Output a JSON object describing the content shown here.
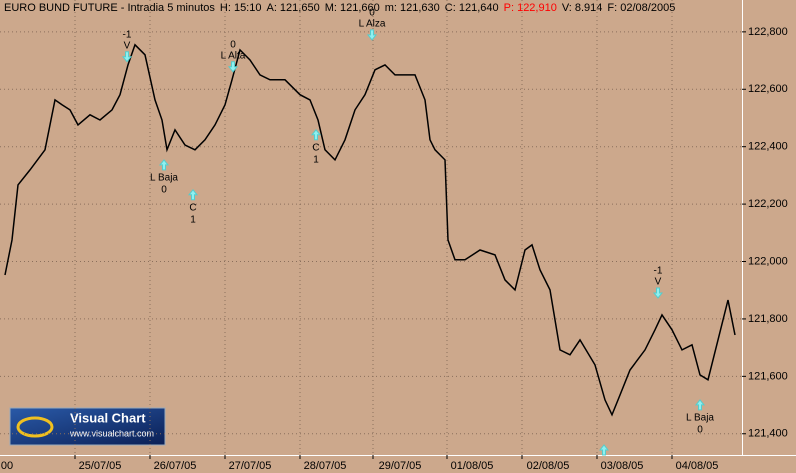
{
  "chart_data": {
    "type": "line",
    "header": [
      {
        "text": "EURO BUND FUTURE - Intradia 5 minutos",
        "color": "#000000"
      },
      {
        "text": "H: 15:10",
        "color": "#000000"
      },
      {
        "text": "A: 121,650",
        "color": "#000000"
      },
      {
        "text": "M: 121,660",
        "color": "#000000"
      },
      {
        "text": "m: 121,630",
        "color": "#000000"
      },
      {
        "text": "C: 121,640",
        "color": "#000000"
      },
      {
        "text": "P: 122,910",
        "color": "#ff0000"
      },
      {
        "text": "V: 8.914",
        "color": "#000000"
      },
      {
        "text": "F: 02/08/2005",
        "color": "#000000"
      }
    ],
    "logo": {
      "title": "Visual Chart",
      "url": "www.visualchart.com"
    },
    "xlim": [
      0,
      742
    ],
    "ylim": [
      121.326,
      122.911
    ],
    "xticks": [
      {
        "value": 7,
        "label": "00"
      },
      {
        "value": 100,
        "label": "25/07/05"
      },
      {
        "value": 175,
        "label": "26/07/05"
      },
      {
        "value": 250,
        "label": "27/07/05"
      },
      {
        "value": 325,
        "label": "28/07/05"
      },
      {
        "value": 400,
        "label": "29/07/05"
      },
      {
        "value": 472,
        "label": "01/08/05"
      },
      {
        "value": 548,
        "label": "02/08/05"
      },
      {
        "value": 622,
        "label": "03/08/05"
      },
      {
        "value": 697,
        "label": "04/08/05"
      }
    ],
    "xgrid": [
      75,
      150,
      225,
      300,
      373,
      447,
      522,
      597,
      672
    ],
    "yticks": [
      {
        "value": 121.4,
        "label": "121,400"
      },
      {
        "value": 121.6,
        "label": "121,600"
      },
      {
        "value": 121.8,
        "label": "121,800"
      },
      {
        "value": 122.0,
        "label": "122,000"
      },
      {
        "value": 122.2,
        "label": "122,200"
      },
      {
        "value": 122.4,
        "label": "122,400"
      },
      {
        "value": 122.6,
        "label": "122,600"
      },
      {
        "value": 122.8,
        "label": "122,800"
      }
    ],
    "grid": true,
    "series": [
      {
        "name": "EURO BUND FUTURE",
        "color": "#000000",
        "x": [
          5,
          12,
          18,
          30,
          45,
          55,
          62,
          70,
          78,
          90,
          100,
          112,
          120,
          128,
          135,
          145,
          155,
          162,
          167,
          175,
          185,
          195,
          205,
          215,
          225,
          232,
          240,
          250,
          260,
          270,
          285,
          300,
          310,
          318,
          325,
          335,
          345,
          355,
          365,
          375,
          385,
          395,
          405,
          415,
          425,
          430,
          435,
          445,
          448,
          455,
          465,
          480,
          495,
          505,
          515,
          525,
          532,
          540,
          550,
          560,
          570,
          580,
          595,
          605,
          612,
          620,
          630,
          645,
          655,
          662,
          672,
          682,
          692,
          700,
          708,
          718,
          728,
          735
        ],
        "values": [
          121.953,
          122.075,
          122.267,
          122.319,
          122.389,
          122.563,
          122.546,
          122.528,
          122.476,
          122.511,
          122.493,
          122.528,
          122.581,
          122.685,
          122.755,
          122.72,
          122.563,
          122.493,
          122.389,
          122.459,
          122.406,
          122.389,
          122.424,
          122.476,
          122.546,
          122.633,
          122.737,
          122.702,
          122.65,
          122.633,
          122.633,
          122.581,
          122.563,
          122.493,
          122.389,
          122.354,
          122.424,
          122.528,
          122.581,
          122.668,
          122.685,
          122.65,
          122.65,
          122.65,
          122.563,
          122.424,
          122.389,
          122.354,
          122.075,
          122.006,
          122.006,
          122.04,
          122.023,
          121.936,
          121.901,
          122.04,
          122.058,
          121.971,
          121.901,
          121.692,
          121.675,
          121.727,
          121.64,
          121.518,
          121.466,
          121.535,
          121.622,
          121.692,
          121.762,
          121.814,
          121.762,
          121.692,
          121.71,
          121.605,
          121.588,
          121.727,
          121.866,
          121.744
        ]
      }
    ],
    "annotations": [
      {
        "x": 127,
        "y": 122.696,
        "dir": "down",
        "lines": [
          "-1",
          "V"
        ]
      },
      {
        "x": 164,
        "y": 122.354,
        "dir": "up",
        "lines": [
          "L Baja",
          "0"
        ]
      },
      {
        "x": 193,
        "y": 122.25,
        "dir": "up",
        "lines": [
          "C",
          "1"
        ]
      },
      {
        "x": 233,
        "y": 122.661,
        "dir": "down",
        "lines": [
          "0",
          "L Alta"
        ]
      },
      {
        "x": 316,
        "y": 122.459,
        "dir": "up",
        "lines": [
          "C",
          "1"
        ]
      },
      {
        "x": 372,
        "y": 122.772,
        "dir": "down",
        "lines": [
          "0",
          "L Alza"
        ]
      },
      {
        "x": 658,
        "y": 121.873,
        "dir": "down",
        "lines": [
          "-1",
          "V"
        ]
      },
      {
        "x": 700,
        "y": 121.518,
        "dir": "up",
        "lines": [
          "L Baja",
          "0"
        ]
      },
      {
        "x": 604,
        "y": 121.361,
        "dir": "up",
        "lines": []
      }
    ]
  }
}
